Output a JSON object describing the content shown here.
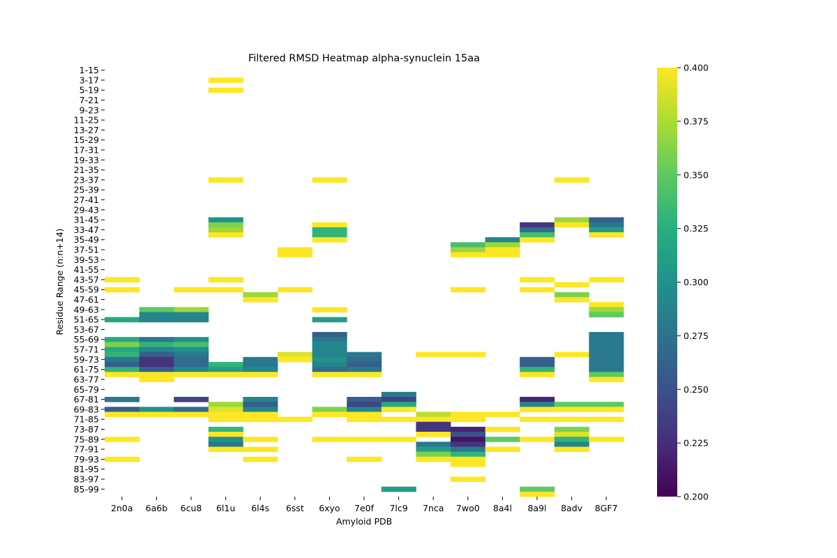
{
  "chart_data": {
    "type": "heatmap",
    "title": "Filtered RMSD Heatmap alpha-synuclein 15aa",
    "xlabel": "Amyloid PDB",
    "ylabel": "Residue Range (n:n+14)",
    "columns": [
      "2n0a",
      "6a6b",
      "6cu8",
      "6l1u",
      "6l4s",
      "6sst",
      "6xyo",
      "7e0f",
      "7lc9",
      "7nca",
      "7wo0",
      "8a4l",
      "8a9l",
      "8adv",
      "8GF7"
    ],
    "row_tick_labels": [
      "1-15",
      "3-17",
      "5-19",
      "7-21",
      "9-23",
      "11-25",
      "13-27",
      "15-29",
      "17-31",
      "19-33",
      "21-35",
      "23-37",
      "25-39",
      "27-41",
      "29-43",
      "31-45",
      "33-47",
      "35-49",
      "37-51",
      "39-53",
      "41-55",
      "43-57",
      "45-59",
      "47-61",
      "49-63",
      "51-65",
      "53-67",
      "55-69",
      "57-71",
      "59-73",
      "61-75",
      "63-77",
      "65-79",
      "67-81",
      "69-83",
      "71-85",
      "73-87",
      "75-89",
      "77-91",
      "79-93",
      "81-95",
      "83-97",
      "85-99"
    ],
    "row_start": 1,
    "row_end": 86,
    "colorbar": {
      "min": 0.2,
      "max": 0.4,
      "ticks": [
        "0.200",
        "0.225",
        "0.250",
        "0.275",
        "0.300",
        "0.325",
        "0.350",
        "0.375",
        "0.400"
      ],
      "colormap": "viridis"
    },
    "cells": {
      "2n0a": [
        [
          43,
          0.4
        ],
        [
          45,
          0.4
        ],
        [
          51,
          0.32
        ],
        [
          55,
          0.32
        ],
        [
          56,
          0.36
        ],
        [
          57,
          0.32
        ],
        [
          58,
          0.33
        ],
        [
          59,
          0.28
        ],
        [
          60,
          0.26
        ],
        [
          61,
          0.33
        ],
        [
          62,
          0.4
        ],
        [
          67,
          0.28
        ],
        [
          69,
          0.26
        ],
        [
          70,
          0.4
        ],
        [
          75,
          0.4
        ],
        [
          79,
          0.4
        ]
      ],
      "6a6b": [
        [
          49,
          0.35
        ],
        [
          50,
          0.29
        ],
        [
          51,
          0.29
        ],
        [
          55,
          0.28
        ],
        [
          56,
          0.33
        ],
        [
          57,
          0.29
        ],
        [
          58,
          0.26
        ],
        [
          59,
          0.23
        ],
        [
          60,
          0.23
        ],
        [
          61,
          0.26
        ],
        [
          62,
          0.4
        ],
        [
          63,
          0.4
        ],
        [
          69,
          0.3
        ],
        [
          70,
          0.4
        ]
      ],
      "6cu8": [
        [
          45,
          0.4
        ],
        [
          49,
          0.37
        ],
        [
          50,
          0.29
        ],
        [
          51,
          0.29
        ],
        [
          55,
          0.3
        ],
        [
          56,
          0.34
        ],
        [
          57,
          0.3
        ],
        [
          58,
          0.28
        ],
        [
          59,
          0.27
        ],
        [
          60,
          0.27
        ],
        [
          61,
          0.29
        ],
        [
          62,
          0.4
        ],
        [
          67,
          0.24
        ],
        [
          69,
          0.27
        ],
        [
          70,
          0.4
        ]
      ],
      "6l1u": [
        [
          3,
          0.4
        ],
        [
          5,
          0.4
        ],
        [
          23,
          0.4
        ],
        [
          31,
          0.3
        ],
        [
          32,
          0.36
        ],
        [
          33,
          0.37
        ],
        [
          34,
          0.4
        ],
        [
          43,
          0.4
        ],
        [
          45,
          0.4
        ],
        [
          60,
          0.33
        ],
        [
          61,
          0.31
        ],
        [
          62,
          0.4
        ],
        [
          68,
          0.37
        ],
        [
          69,
          0.39
        ],
        [
          70,
          0.4
        ],
        [
          71,
          0.4
        ],
        [
          73,
          0.33
        ],
        [
          74,
          0.4
        ],
        [
          75,
          0.3
        ],
        [
          76,
          0.28
        ],
        [
          77,
          0.4
        ]
      ],
      "6l4s": [
        [
          46,
          0.37
        ],
        [
          47,
          0.4
        ],
        [
          59,
          0.28
        ],
        [
          60,
          0.28
        ],
        [
          61,
          0.29
        ],
        [
          62,
          0.4
        ],
        [
          67,
          0.29
        ],
        [
          68,
          0.26
        ],
        [
          69,
          0.29
        ],
        [
          70,
          0.4
        ],
        [
          71,
          0.4
        ],
        [
          75,
          0.4
        ],
        [
          77,
          0.4
        ],
        [
          79,
          0.4
        ]
      ],
      "6sst": [
        [
          37,
          0.4
        ],
        [
          38,
          0.4
        ],
        [
          45,
          0.4
        ],
        [
          58,
          0.39
        ],
        [
          59,
          0.4
        ],
        [
          71,
          0.4
        ]
      ],
      "6xyo": [
        [
          23,
          0.4
        ],
        [
          32,
          0.4
        ],
        [
          33,
          0.33
        ],
        [
          34,
          0.33
        ],
        [
          35,
          0.4
        ],
        [
          49,
          0.4
        ],
        [
          51,
          0.31
        ],
        [
          54,
          0.26
        ],
        [
          55,
          0.28
        ],
        [
          56,
          0.29
        ],
        [
          57,
          0.29
        ],
        [
          58,
          0.29
        ],
        [
          59,
          0.3
        ],
        [
          60,
          0.29
        ],
        [
          61,
          0.27
        ],
        [
          62,
          0.4
        ],
        [
          69,
          0.36
        ],
        [
          70,
          0.4
        ],
        [
          75,
          0.4
        ]
      ],
      "7e0f": [
        [
          58,
          0.28
        ],
        [
          59,
          0.27
        ],
        [
          60,
          0.26
        ],
        [
          61,
          0.28
        ],
        [
          62,
          0.4
        ],
        [
          67,
          0.26
        ],
        [
          68,
          0.24
        ],
        [
          69,
          0.29
        ],
        [
          70,
          0.4
        ],
        [
          71,
          0.4
        ],
        [
          75,
          0.4
        ],
        [
          79,
          0.4
        ]
      ],
      "7lc9": [
        [
          66,
          0.28
        ],
        [
          67,
          0.24
        ],
        [
          68,
          0.32
        ],
        [
          69,
          0.4
        ],
        [
          71,
          0.4
        ],
        [
          75,
          0.4
        ],
        [
          85,
          0.31
        ]
      ],
      "7nca": [
        [
          58,
          0.4
        ],
        [
          70,
          0.38
        ],
        [
          71,
          0.4
        ],
        [
          72,
          0.23
        ],
        [
          73,
          0.23
        ],
        [
          74,
          0.4
        ],
        [
          76,
          0.28
        ],
        [
          77,
          0.31
        ],
        [
          78,
          0.36
        ],
        [
          79,
          0.4
        ]
      ],
      "7wo0": [
        [
          36,
          0.34
        ],
        [
          37,
          0.37
        ],
        [
          38,
          0.4
        ],
        [
          45,
          0.4
        ],
        [
          58,
          0.4
        ],
        [
          70,
          0.4
        ],
        [
          71,
          0.4
        ],
        [
          73,
          0.22
        ],
        [
          74,
          0.25
        ],
        [
          75,
          0.21
        ],
        [
          76,
          0.23
        ],
        [
          77,
          0.28
        ],
        [
          78,
          0.33
        ],
        [
          79,
          0.4
        ],
        [
          80,
          0.4
        ],
        [
          83,
          0.4
        ]
      ],
      "8a4l": [
        [
          35,
          0.29
        ],
        [
          36,
          0.37
        ],
        [
          37,
          0.4
        ],
        [
          38,
          0.4
        ],
        [
          70,
          0.4
        ],
        [
          73,
          0.4
        ],
        [
          75,
          0.35
        ],
        [
          77,
          0.4
        ]
      ],
      "8a9l": [
        [
          32,
          0.23
        ],
        [
          33,
          0.27
        ],
        [
          34,
          0.34
        ],
        [
          35,
          0.4
        ],
        [
          43,
          0.4
        ],
        [
          45,
          0.4
        ],
        [
          59,
          0.26
        ],
        [
          60,
          0.26
        ],
        [
          61,
          0.33
        ],
        [
          62,
          0.4
        ],
        [
          67,
          0.22
        ],
        [
          68,
          0.29
        ],
        [
          69,
          0.4
        ],
        [
          71,
          0.4
        ],
        [
          75,
          0.4
        ],
        [
          85,
          0.35
        ],
        [
          86,
          0.4
        ]
      ],
      "8adv": [
        [
          23,
          0.4
        ],
        [
          31,
          0.37
        ],
        [
          32,
          0.4
        ],
        [
          44,
          0.4
        ],
        [
          46,
          0.36
        ],
        [
          47,
          0.4
        ],
        [
          58,
          0.4
        ],
        [
          68,
          0.35
        ],
        [
          69,
          0.4
        ],
        [
          71,
          0.4
        ],
        [
          73,
          0.36
        ],
        [
          74,
          0.39
        ],
        [
          75,
          0.33
        ],
        [
          76,
          0.29
        ],
        [
          77,
          0.4
        ]
      ],
      "8GF7": [
        [
          31,
          0.26
        ],
        [
          32,
          0.28
        ],
        [
          33,
          0.31
        ],
        [
          34,
          0.4
        ],
        [
          43,
          0.4
        ],
        [
          48,
          0.4
        ],
        [
          49,
          0.37
        ],
        [
          50,
          0.35
        ],
        [
          54,
          0.28
        ],
        [
          55,
          0.28
        ],
        [
          56,
          0.28
        ],
        [
          57,
          0.28
        ],
        [
          58,
          0.28
        ],
        [
          59,
          0.28
        ],
        [
          60,
          0.28
        ],
        [
          61,
          0.28
        ],
        [
          62,
          0.35
        ],
        [
          63,
          0.4
        ],
        [
          68,
          0.35
        ],
        [
          69,
          0.4
        ],
        [
          71,
          0.4
        ],
        [
          75,
          0.4
        ]
      ]
    }
  }
}
